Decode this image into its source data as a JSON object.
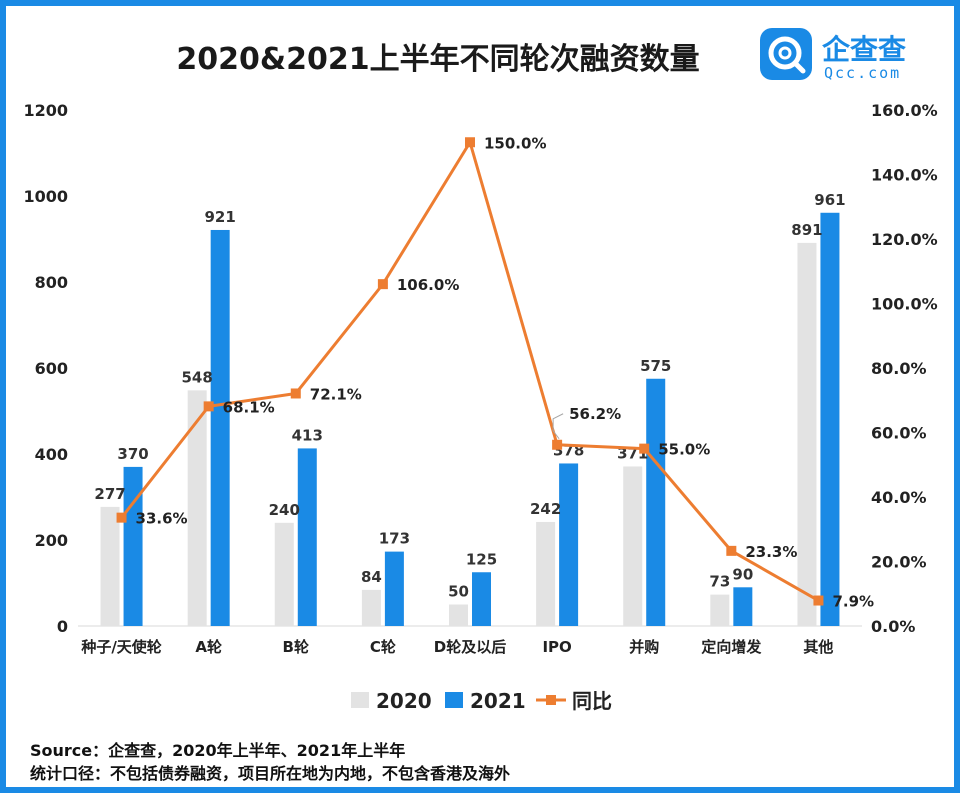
{
  "logo": {
    "name": "企查查",
    "sub": "Qcc.com",
    "icon": "qcc-magnifier-logo-icon"
  },
  "footer": {
    "source": "Source：企查查，2020年上半年、2021年上半年",
    "scope": "统计口径：不包括债券融资，项目所在地为内地，不包含香港及海外"
  },
  "colors": {
    "bar2020": "#e3e3e3",
    "bar2021": "#1a8ae5",
    "line": "#ed7d31",
    "border": "#1a8ae5"
  },
  "chart_data": {
    "type": "bar",
    "title": "2020&2021上半年不同轮次融资数量",
    "categories": [
      "种子/天使轮",
      "A轮",
      "B轮",
      "C轮",
      "D轮及以后",
      "IPO",
      "并购",
      "定向增发",
      "其他"
    ],
    "series": [
      {
        "name": "2020",
        "type": "bar",
        "axis": "left",
        "values": [
          277,
          548,
          240,
          84,
          50,
          242,
          371,
          73,
          891
        ]
      },
      {
        "name": "2021",
        "type": "bar",
        "axis": "left",
        "values": [
          370,
          921,
          413,
          173,
          125,
          378,
          575,
          90,
          961
        ]
      },
      {
        "name": "同比",
        "type": "line",
        "axis": "right",
        "values": [
          33.6,
          68.1,
          72.1,
          106.0,
          150.0,
          56.2,
          55.0,
          23.3,
          7.9
        ],
        "labels": [
          "33.6%",
          "68.1%",
          "72.1%",
          "106.0%",
          "150.0%",
          "56.2%",
          "55.0%",
          "23.3%",
          "7.9%"
        ]
      }
    ],
    "ylim": [
      0,
      1200
    ],
    "yticks": [
      "0",
      "200",
      "400",
      "600",
      "800",
      "1000",
      "1200"
    ],
    "y2lim": [
      0,
      160
    ],
    "y2ticks": [
      "0.0%",
      "20.0%",
      "40.0%",
      "60.0%",
      "80.0%",
      "100.0%",
      "120.0%",
      "140.0%",
      "160.0%"
    ],
    "legend_position": "bottom",
    "grid": false
  }
}
